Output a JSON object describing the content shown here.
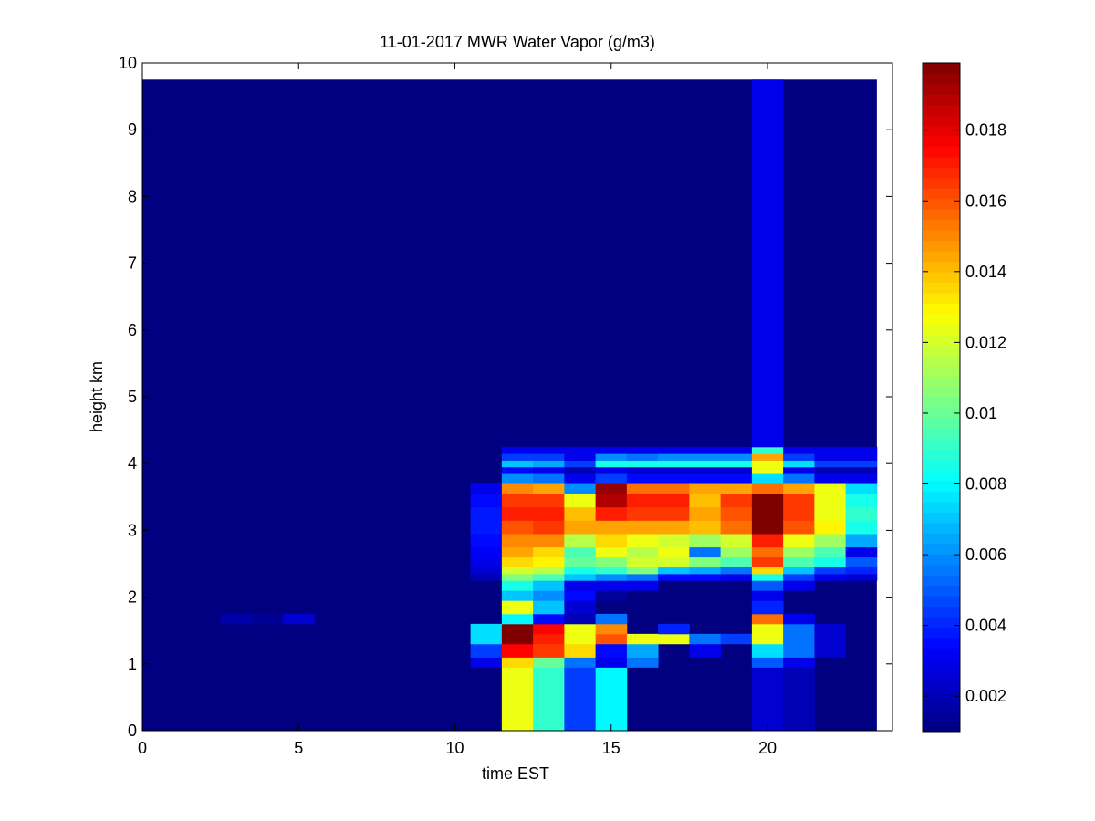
{
  "chart_data": {
    "type": "heatmap",
    "title": "11-01-2017 MWR Water Vapor (g/m3)",
    "xlabel": "time EST",
    "ylabel": "height km",
    "xlim": [
      0,
      24
    ],
    "ylim": [
      0,
      10
    ],
    "x_ticks": [
      "0",
      "5",
      "10",
      "15",
      "20"
    ],
    "y_ticks": [
      "0",
      "1",
      "2",
      "3",
      "4",
      "5",
      "6",
      "7",
      "8",
      "9",
      "10"
    ],
    "colorbar": {
      "colormap": "jet",
      "range": [
        0.001,
        0.0199
      ],
      "ticks": [
        "0.002",
        "0.004",
        "0.006",
        "0.008",
        "0.01",
        "0.012",
        "0.014",
        "0.016",
        "0.018"
      ]
    },
    "time_edges": [
      0,
      1,
      2,
      2.5,
      3.5,
      4.5,
      5.5,
      10.5,
      11.5,
      12.5,
      13.5,
      14.5,
      15.5,
      16.5,
      17.5,
      18.5,
      19.5,
      20.5,
      21.5,
      22.5,
      23.5
    ],
    "height_edges": [
      0,
      0.95,
      1.1,
      1.3,
      1.45,
      1.6,
      1.75,
      1.95,
      2.1,
      2.25,
      2.35,
      2.45,
      2.6,
      2.75,
      2.95,
      3.15,
      3.35,
      3.55,
      3.7,
      3.85,
      3.95,
      4.05,
      4.15,
      4.25,
      9.75
    ],
    "background_value": 0.001,
    "cells": [
      [
        3,
        5,
        0.0018
      ],
      [
        4,
        5,
        0.0014
      ],
      [
        5,
        5,
        0.0025
      ],
      [
        7,
        1,
        0.003
      ],
      [
        7,
        2,
        0.0045
      ],
      [
        7,
        3,
        0.0075
      ],
      [
        7,
        4,
        0.0075
      ],
      [
        7,
        9,
        0.002
      ],
      [
        7,
        10,
        0.0025
      ],
      [
        7,
        11,
        0.003
      ],
      [
        7,
        12,
        0.0032
      ],
      [
        7,
        13,
        0.0035
      ],
      [
        7,
        14,
        0.0038
      ],
      [
        7,
        15,
        0.0038
      ],
      [
        7,
        16,
        0.0035
      ],
      [
        7,
        17,
        0.003
      ],
      [
        8,
        0,
        0.0125
      ],
      [
        8,
        1,
        0.0135
      ],
      [
        8,
        2,
        0.0175
      ],
      [
        8,
        3,
        0.0199
      ],
      [
        8,
        4,
        0.0199
      ],
      [
        8,
        5,
        0.008
      ],
      [
        8,
        6,
        0.0125
      ],
      [
        8,
        7,
        0.007
      ],
      [
        8,
        8,
        0.0085
      ],
      [
        8,
        9,
        0.0105
      ],
      [
        8,
        10,
        0.012
      ],
      [
        8,
        11,
        0.0135
      ],
      [
        8,
        12,
        0.0145
      ],
      [
        8,
        13,
        0.015
      ],
      [
        8,
        14,
        0.016
      ],
      [
        8,
        15,
        0.017
      ],
      [
        8,
        16,
        0.0165
      ],
      [
        8,
        17,
        0.015
      ],
      [
        8,
        18,
        0.006
      ],
      [
        8,
        19,
        0.0035
      ],
      [
        8,
        20,
        0.007
      ],
      [
        8,
        21,
        0.0045
      ],
      [
        8,
        22,
        0.003
      ],
      [
        9,
        0,
        0.009
      ],
      [
        9,
        1,
        0.01
      ],
      [
        9,
        2,
        0.0165
      ],
      [
        9,
        3,
        0.017
      ],
      [
        9,
        4,
        0.0175
      ],
      [
        9,
        5,
        0.0035
      ],
      [
        9,
        6,
        0.007
      ],
      [
        9,
        7,
        0.006
      ],
      [
        9,
        8,
        0.007
      ],
      [
        9,
        9,
        0.0095
      ],
      [
        9,
        10,
        0.0115
      ],
      [
        9,
        11,
        0.013
      ],
      [
        9,
        12,
        0.0135
      ],
      [
        9,
        13,
        0.015
      ],
      [
        9,
        14,
        0.0165
      ],
      [
        9,
        15,
        0.017
      ],
      [
        9,
        16,
        0.0165
      ],
      [
        9,
        17,
        0.0145
      ],
      [
        9,
        18,
        0.0055
      ],
      [
        9,
        19,
        0.003
      ],
      [
        9,
        20,
        0.0065
      ],
      [
        9,
        21,
        0.0045
      ],
      [
        9,
        22,
        0.003
      ],
      [
        10,
        0,
        0.0045
      ],
      [
        10,
        1,
        0.0055
      ],
      [
        10,
        2,
        0.0135
      ],
      [
        10,
        3,
        0.0125
      ],
      [
        10,
        4,
        0.0125
      ],
      [
        10,
        5,
        0.002
      ],
      [
        10,
        6,
        0.0025
      ],
      [
        10,
        7,
        0.0035
      ],
      [
        10,
        8,
        0.003
      ],
      [
        10,
        9,
        0.007
      ],
      [
        10,
        10,
        0.0085
      ],
      [
        10,
        11,
        0.01
      ],
      [
        10,
        12,
        0.0095
      ],
      [
        10,
        13,
        0.0115
      ],
      [
        10,
        14,
        0.0145
      ],
      [
        10,
        15,
        0.014
      ],
      [
        10,
        16,
        0.0125
      ],
      [
        10,
        17,
        0.006
      ],
      [
        10,
        18,
        0.003
      ],
      [
        10,
        19,
        0.002
      ],
      [
        10,
        20,
        0.0045
      ],
      [
        10,
        21,
        0.003
      ],
      [
        10,
        22,
        0.003
      ],
      [
        11,
        0,
        0.008
      ],
      [
        11,
        1,
        0.003
      ],
      [
        11,
        2,
        0.0035
      ],
      [
        11,
        3,
        0.016
      ],
      [
        11,
        4,
        0.015
      ],
      [
        11,
        5,
        0.0055
      ],
      [
        11,
        7,
        0.0015
      ],
      [
        11,
        8,
        0.003
      ],
      [
        11,
        9,
        0.006
      ],
      [
        11,
        10,
        0.009
      ],
      [
        11,
        11,
        0.0105
      ],
      [
        11,
        12,
        0.0125
      ],
      [
        11,
        13,
        0.0135
      ],
      [
        11,
        14,
        0.0145
      ],
      [
        11,
        15,
        0.017
      ],
      [
        11,
        16,
        0.019
      ],
      [
        11,
        17,
        0.0195
      ],
      [
        11,
        18,
        0.0045
      ],
      [
        11,
        19,
        0.003
      ],
      [
        11,
        20,
        0.0085
      ],
      [
        11,
        21,
        0.006
      ],
      [
        11,
        22,
        0.003
      ],
      [
        12,
        1,
        0.0055
      ],
      [
        12,
        2,
        0.0065
      ],
      [
        12,
        3,
        0.0125
      ],
      [
        12,
        8,
        0.003
      ],
      [
        12,
        9,
        0.0055
      ],
      [
        12,
        10,
        0.0105
      ],
      [
        12,
        11,
        0.012
      ],
      [
        12,
        12,
        0.0115
      ],
      [
        12,
        13,
        0.0125
      ],
      [
        12,
        14,
        0.0145
      ],
      [
        12,
        15,
        0.0165
      ],
      [
        12,
        16,
        0.017
      ],
      [
        12,
        17,
        0.0155
      ],
      [
        12,
        18,
        0.0035
      ],
      [
        12,
        19,
        0.0025
      ],
      [
        12,
        20,
        0.0085
      ],
      [
        12,
        21,
        0.0055
      ],
      [
        12,
        22,
        0.003
      ],
      [
        13,
        3,
        0.0125
      ],
      [
        13,
        4,
        0.004
      ],
      [
        13,
        9,
        0.0035
      ],
      [
        13,
        10,
        0.007
      ],
      [
        13,
        11,
        0.012
      ],
      [
        13,
        12,
        0.0125
      ],
      [
        13,
        13,
        0.012
      ],
      [
        13,
        14,
        0.0145
      ],
      [
        13,
        15,
        0.0165
      ],
      [
        13,
        16,
        0.017
      ],
      [
        13,
        17,
        0.0155
      ],
      [
        13,
        18,
        0.0035
      ],
      [
        13,
        19,
        0.0025
      ],
      [
        13,
        20,
        0.0085
      ],
      [
        13,
        21,
        0.006
      ],
      [
        13,
        22,
        0.003
      ],
      [
        14,
        2,
        0.003
      ],
      [
        14,
        3,
        0.0055
      ],
      [
        14,
        9,
        0.0035
      ],
      [
        14,
        10,
        0.0065
      ],
      [
        14,
        11,
        0.0105
      ],
      [
        14,
        12,
        0.0055
      ],
      [
        14,
        13,
        0.011
      ],
      [
        14,
        14,
        0.014
      ],
      [
        14,
        15,
        0.0145
      ],
      [
        14,
        16,
        0.014
      ],
      [
        14,
        17,
        0.0145
      ],
      [
        14,
        18,
        0.0035
      ],
      [
        14,
        19,
        0.0025
      ],
      [
        14,
        20,
        0.0085
      ],
      [
        14,
        21,
        0.006
      ],
      [
        14,
        22,
        0.003
      ],
      [
        15,
        3,
        0.0045
      ],
      [
        15,
        9,
        0.003
      ],
      [
        15,
        10,
        0.0055
      ],
      [
        15,
        11,
        0.0095
      ],
      [
        15,
        12,
        0.011
      ],
      [
        15,
        13,
        0.012
      ],
      [
        15,
        14,
        0.0155
      ],
      [
        15,
        15,
        0.016
      ],
      [
        15,
        16,
        0.0165
      ],
      [
        15,
        17,
        0.0145
      ],
      [
        15,
        18,
        0.0035
      ],
      [
        15,
        19,
        0.0025
      ],
      [
        15,
        20,
        0.0085
      ],
      [
        15,
        21,
        0.006
      ],
      [
        15,
        22,
        0.003
      ],
      [
        16,
        0,
        0.0025
      ],
      [
        16,
        1,
        0.005
      ],
      [
        16,
        2,
        0.0075
      ],
      [
        16,
        3,
        0.0125
      ],
      [
        16,
        4,
        0.0125
      ],
      [
        16,
        5,
        0.0155
      ],
      [
        16,
        6,
        0.004
      ],
      [
        16,
        7,
        0.003
      ],
      [
        16,
        8,
        0.005
      ],
      [
        16,
        9,
        0.0085
      ],
      [
        16,
        10,
        0.0135
      ],
      [
        16,
        11,
        0.0165
      ],
      [
        16,
        12,
        0.0155
      ],
      [
        16,
        13,
        0.017
      ],
      [
        16,
        14,
        0.0199
      ],
      [
        16,
        15,
        0.0199
      ],
      [
        16,
        16,
        0.0199
      ],
      [
        16,
        17,
        0.0155
      ],
      [
        16,
        18,
        0.0075
      ],
      [
        16,
        19,
        0.0125
      ],
      [
        16,
        20,
        0.0125
      ],
      [
        16,
        21,
        0.0145
      ],
      [
        16,
        22,
        0.009
      ],
      [
        16,
        23,
        0.003
      ],
      [
        17,
        0,
        0.002
      ],
      [
        17,
        1,
        0.003
      ],
      [
        17,
        2,
        0.0055
      ],
      [
        17,
        3,
        0.0055
      ],
      [
        17,
        4,
        0.0055
      ],
      [
        17,
        5,
        0.003
      ],
      [
        17,
        8,
        0.003
      ],
      [
        17,
        9,
        0.0045
      ],
      [
        17,
        10,
        0.007
      ],
      [
        17,
        11,
        0.0095
      ],
      [
        17,
        12,
        0.011
      ],
      [
        17,
        13,
        0.0125
      ],
      [
        17,
        14,
        0.016
      ],
      [
        17,
        15,
        0.0165
      ],
      [
        17,
        16,
        0.0165
      ],
      [
        17,
        17,
        0.0145
      ],
      [
        17,
        18,
        0.0055
      ],
      [
        17,
        19,
        0.003
      ],
      [
        17,
        20,
        0.0075
      ],
      [
        17,
        21,
        0.0045
      ],
      [
        17,
        22,
        0.003
      ],
      [
        18,
        2,
        0.0025
      ],
      [
        18,
        3,
        0.0025
      ],
      [
        18,
        4,
        0.0025
      ],
      [
        18,
        9,
        0.003
      ],
      [
        18,
        10,
        0.0045
      ],
      [
        18,
        11,
        0.0085
      ],
      [
        18,
        12,
        0.0095
      ],
      [
        18,
        13,
        0.011
      ],
      [
        18,
        14,
        0.013
      ],
      [
        18,
        15,
        0.0125
      ],
      [
        18,
        16,
        0.0125
      ],
      [
        18,
        17,
        0.0125
      ],
      [
        18,
        18,
        0.003
      ],
      [
        18,
        19,
        0.002
      ],
      [
        18,
        20,
        0.0045
      ],
      [
        18,
        21,
        0.003
      ],
      [
        18,
        22,
        0.003
      ],
      [
        19,
        9,
        0.0025
      ],
      [
        19,
        10,
        0.004
      ],
      [
        19,
        11,
        0.005
      ],
      [
        19,
        12,
        0.003
      ],
      [
        19,
        13,
        0.0065
      ],
      [
        19,
        14,
        0.0085
      ],
      [
        19,
        15,
        0.009
      ],
      [
        19,
        16,
        0.0085
      ],
      [
        19,
        17,
        0.0075
      ],
      [
        19,
        18,
        0.003
      ],
      [
        19,
        19,
        0.002
      ],
      [
        19,
        20,
        0.0045
      ],
      [
        19,
        21,
        0.003
      ],
      [
        19,
        22,
        0.003
      ]
    ]
  }
}
